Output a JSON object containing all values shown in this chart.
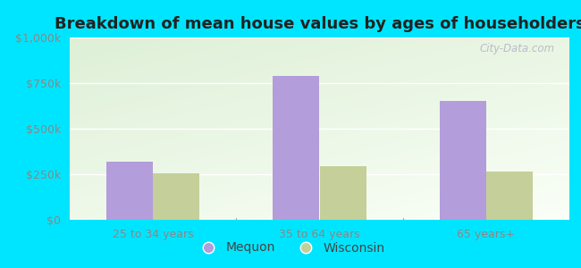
{
  "title": "Breakdown of mean house values by ages of householders",
  "categories": [
    "25 to 34 years",
    "35 to 64 years",
    "65 years+"
  ],
  "mequon_values": [
    320000,
    790000,
    650000
  ],
  "wisconsin_values": [
    255000,
    295000,
    265000
  ],
  "ylim": [
    0,
    1000000
  ],
  "yticks": [
    0,
    250000,
    500000,
    750000,
    1000000
  ],
  "ytick_labels": [
    "$0",
    "$250k",
    "$500k",
    "$750k",
    "$1,000k"
  ],
  "mequon_color": "#b39ddb",
  "wisconsin_color": "#c5cf9a",
  "background_outer": "#00e5ff",
  "watermark": "City-Data.com",
  "legend_mequon": "Mequon",
  "legend_wisconsin": "Wisconsin",
  "bar_width": 0.28,
  "title_fontsize": 13,
  "tick_fontsize": 9,
  "legend_fontsize": 10,
  "grad_top_color": "#edf5e8",
  "grad_bottom_color": "#f8fcf5",
  "grid_color": "#e0e8d8"
}
